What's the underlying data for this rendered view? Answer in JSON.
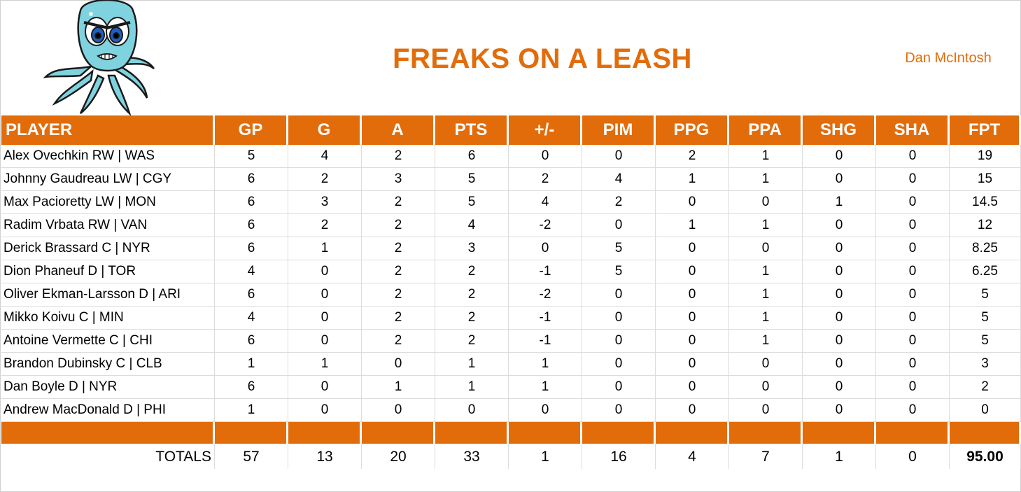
{
  "header": {
    "team_name": "FREAKS ON A LEASH",
    "owner": "Dan McIntosh",
    "logo": "octopus-mascot"
  },
  "colors": {
    "accent": "#e36c0a",
    "header_text": "#ffffff"
  },
  "table": {
    "columns": [
      "PLAYER",
      "GP",
      "G",
      "A",
      "PTS",
      "+/-",
      "PIM",
      "PPG",
      "PPA",
      "SHG",
      "SHA",
      "FPT"
    ],
    "rows": [
      [
        "Alex Ovechkin RW | WAS",
        "5",
        "4",
        "2",
        "6",
        "0",
        "0",
        "2",
        "1",
        "0",
        "0",
        "19"
      ],
      [
        "Johnny Gaudreau LW | CGY",
        "6",
        "2",
        "3",
        "5",
        "2",
        "4",
        "1",
        "1",
        "0",
        "0",
        "15"
      ],
      [
        "Max Pacioretty LW | MON",
        "6",
        "3",
        "2",
        "5",
        "4",
        "2",
        "0",
        "0",
        "1",
        "0",
        "14.5"
      ],
      [
        "Radim Vrbata RW | VAN",
        "6",
        "2",
        "2",
        "4",
        "-2",
        "0",
        "1",
        "1",
        "0",
        "0",
        "12"
      ],
      [
        "Derick Brassard C | NYR",
        "6",
        "1",
        "2",
        "3",
        "0",
        "5",
        "0",
        "0",
        "0",
        "0",
        "8.25"
      ],
      [
        "Dion Phaneuf D | TOR",
        "4",
        "0",
        "2",
        "2",
        "-1",
        "5",
        "0",
        "1",
        "0",
        "0",
        "6.25"
      ],
      [
        "Oliver Ekman-Larsson D | ARI",
        "6",
        "0",
        "2",
        "2",
        "-2",
        "0",
        "0",
        "1",
        "0",
        "0",
        "5"
      ],
      [
        "Mikko Koivu C | MIN",
        "4",
        "0",
        "2",
        "2",
        "-1",
        "0",
        "0",
        "1",
        "0",
        "0",
        "5"
      ],
      [
        "Antoine Vermette C | CHI",
        "6",
        "0",
        "2",
        "2",
        "-1",
        "0",
        "0",
        "1",
        "0",
        "0",
        "5"
      ],
      [
        "Brandon Dubinsky C | CLB",
        "1",
        "1",
        "0",
        "1",
        "1",
        "0",
        "0",
        "0",
        "0",
        "0",
        "3"
      ],
      [
        "Dan Boyle D | NYR",
        "6",
        "0",
        "1",
        "1",
        "1",
        "0",
        "0",
        "0",
        "0",
        "0",
        "2"
      ],
      [
        "Andrew MacDonald D | PHI",
        "1",
        "0",
        "0",
        "0",
        "0",
        "0",
        "0",
        "0",
        "0",
        "0",
        "0"
      ]
    ],
    "totals": {
      "label": "TOTALS",
      "values": [
        "57",
        "13",
        "20",
        "33",
        "1",
        "16",
        "4",
        "7",
        "1",
        "0",
        "95.00"
      ]
    }
  }
}
